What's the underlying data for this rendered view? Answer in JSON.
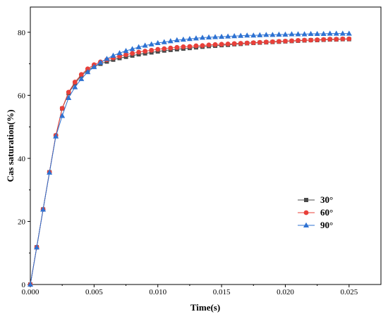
{
  "chart_data": {
    "type": "line",
    "title": "",
    "xlabel": "Time(s)",
    "ylabel": "Cas saturation(%)",
    "xlim": [
      0,
      0.0275
    ],
    "ylim": [
      0,
      88
    ],
    "x_ticks": [
      0.0,
      0.005,
      0.01,
      0.015,
      0.02,
      0.025
    ],
    "x_tick_labels": [
      "0.000",
      "0.005",
      "0.010",
      "0.015",
      "0.020",
      "0.025"
    ],
    "y_ticks": [
      0,
      20,
      40,
      60,
      80
    ],
    "y_tick_labels": [
      "0",
      "20",
      "40",
      "60",
      "80"
    ],
    "grid": false,
    "legend_position": "right",
    "x": [
      0,
      0.0005,
      0.001,
      0.0015,
      0.002,
      0.0025,
      0.003,
      0.0035,
      0.004,
      0.0045,
      0.005,
      0.0055,
      0.006,
      0.0065,
      0.007,
      0.0075,
      0.008,
      0.0085,
      0.009,
      0.0095,
      0.01,
      0.0105,
      0.011,
      0.0115,
      0.012,
      0.0125,
      0.013,
      0.0135,
      0.014,
      0.0145,
      0.015,
      0.0155,
      0.016,
      0.0165,
      0.017,
      0.0175,
      0.018,
      0.0185,
      0.019,
      0.0195,
      0.02,
      0.0205,
      0.021,
      0.0215,
      0.022,
      0.0225,
      0.023,
      0.0235,
      0.024,
      0.0245,
      0.025
    ],
    "series": [
      {
        "name": "30°",
        "color": "#4a4a4a",
        "marker": "square",
        "values": [
          0,
          11.8,
          23.8,
          35.6,
          47.2,
          55.8,
          60.7,
          63.8,
          66.2,
          68.0,
          69.1,
          70.0,
          70.7,
          71.3,
          71.8,
          72.2,
          72.6,
          73.0,
          73.3,
          73.6,
          73.9,
          74.2,
          74.4,
          74.6,
          74.8,
          75.0,
          75.2,
          75.4,
          75.6,
          75.7,
          75.9,
          76.0,
          76.2,
          76.3,
          76.5,
          76.6,
          76.7,
          76.8,
          76.9,
          77.0,
          77.1,
          77.2,
          77.3,
          77.4,
          77.5,
          77.5,
          77.6,
          77.7,
          77.7,
          77.8,
          77.8
        ]
      },
      {
        "name": "60°",
        "color": "#e8403a",
        "marker": "circle",
        "values": [
          0,
          11.8,
          23.8,
          35.6,
          47.3,
          55.9,
          61.0,
          64.2,
          66.6,
          68.4,
          69.7,
          70.6,
          71.3,
          71.9,
          72.4,
          72.9,
          73.3,
          73.7,
          74.0,
          74.3,
          74.6,
          74.8,
          75.0,
          75.2,
          75.4,
          75.5,
          75.7,
          75.8,
          76.0,
          76.1,
          76.2,
          76.3,
          76.4,
          76.5,
          76.6,
          76.7,
          76.8,
          76.9,
          77.0,
          77.1,
          77.2,
          77.3,
          77.4,
          77.5,
          77.5,
          77.6,
          77.7,
          77.8,
          77.8,
          77.9,
          77.9
        ]
      },
      {
        "name": "90°",
        "color": "#2e72d2",
        "marker": "triangle",
        "values": [
          0,
          11.8,
          23.8,
          35.5,
          47.0,
          53.5,
          59.2,
          62.6,
          65.2,
          67.4,
          69.0,
          70.4,
          71.6,
          72.6,
          73.4,
          74.1,
          74.7,
          75.3,
          75.8,
          76.2,
          76.6,
          76.9,
          77.2,
          77.5,
          77.7,
          77.9,
          78.1,
          78.3,
          78.4,
          78.5,
          78.6,
          78.7,
          78.8,
          78.9,
          79.0,
          79.0,
          79.1,
          79.2,
          79.2,
          79.3,
          79.3,
          79.4,
          79.4,
          79.4,
          79.5,
          79.5,
          79.5,
          79.6,
          79.6,
          79.6,
          79.6
        ]
      }
    ]
  }
}
